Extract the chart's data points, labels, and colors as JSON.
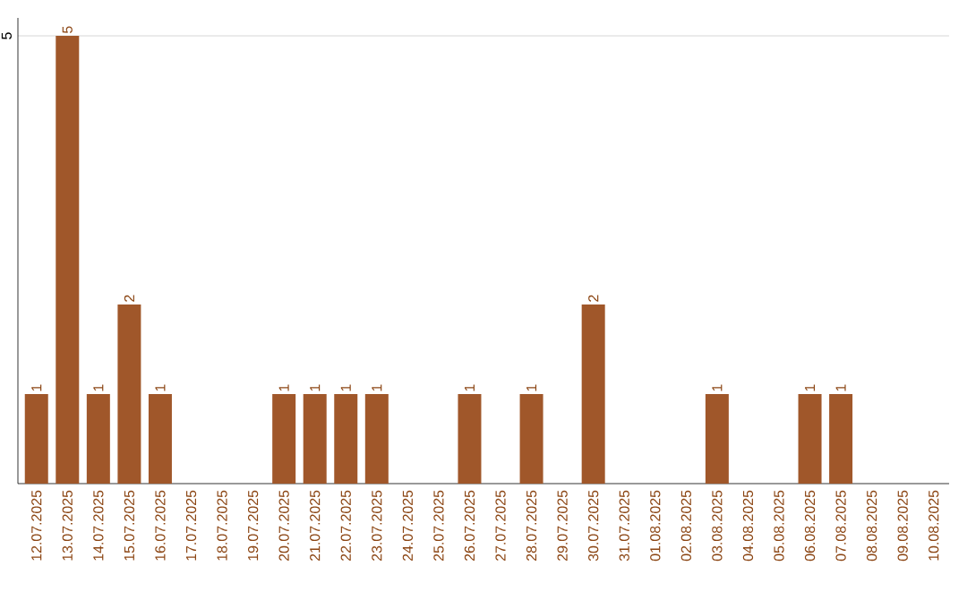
{
  "chart_data": {
    "type": "bar",
    "categories": [
      "12.07.2025",
      "13.07.2025",
      "14.07.2025",
      "15.07.2025",
      "16.07.2025",
      "17.07.2025",
      "18.07.2025",
      "19.07.2025",
      "20.07.2025",
      "21.07.2025",
      "22.07.2025",
      "23.07.2025",
      "24.07.2025",
      "25.07.2025",
      "26.07.2025",
      "27.07.2025",
      "28.07.2025",
      "29.07.2025",
      "30.07.2025",
      "31.07.2025",
      "01.08.2025",
      "02.08.2025",
      "03.08.2025",
      "04.08.2025",
      "05.08.2025",
      "06.08.2025",
      "07.08.2025",
      "08.08.2025",
      "09.08.2025",
      "10.08.2025"
    ],
    "values": [
      1,
      5,
      1,
      2,
      1,
      0,
      0,
      0,
      1,
      1,
      1,
      1,
      0,
      0,
      1,
      0,
      1,
      0,
      2,
      0,
      0,
      0,
      1,
      0,
      0,
      1,
      1,
      0,
      0,
      0
    ],
    "value_labels": [
      "1",
      "5",
      "1",
      "2",
      "1",
      null,
      null,
      null,
      "1",
      "1",
      "1",
      "1",
      null,
      null,
      "1",
      null,
      "1",
      null,
      "2",
      null,
      null,
      null,
      "1",
      null,
      null,
      "1",
      "1",
      null,
      null,
      null
    ],
    "color": "#a0572a",
    "ylim": [
      0,
      5.2
    ],
    "yticks": [
      5
    ],
    "grid": "y"
  }
}
